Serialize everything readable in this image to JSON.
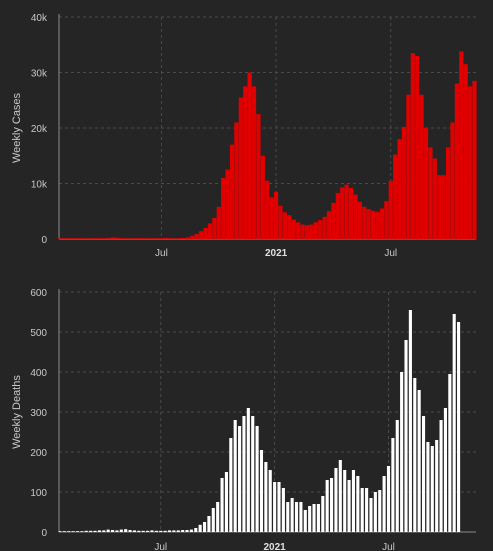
{
  "colors": {
    "background": "#252525",
    "cases_bars": "#e00000",
    "deaths_bars": "#ffffff",
    "grid": "#4a4a4a",
    "text": "#c8c8c8"
  },
  "chart_data": [
    {
      "type": "bar",
      "ylabel": "Weekly Cases",
      "ylim": [
        0,
        40000
      ],
      "yticks": [
        {
          "value": 0,
          "label": "0"
        },
        {
          "value": 10000,
          "label": "10k"
        },
        {
          "value": 20000,
          "label": "20k"
        },
        {
          "value": 30000,
          "label": "30k"
        },
        {
          "value": 40000,
          "label": "40k"
        }
      ],
      "xticks": [
        {
          "week": 23,
          "label": "Jul",
          "bold": false
        },
        {
          "week": 49,
          "label": "2021",
          "bold": true
        },
        {
          "week": 75,
          "label": "Jul",
          "bold": false
        }
      ],
      "grid": true,
      "series": [
        {
          "values": [
            0,
            0,
            0,
            0,
            0,
            10,
            20,
            30,
            40,
            50,
            60,
            200,
            300,
            250,
            150,
            80,
            50,
            40,
            30,
            30,
            50,
            80,
            60,
            100,
            200,
            150,
            100,
            150,
            200,
            300,
            600,
            900,
            1400,
            2000,
            2800,
            3800,
            5800,
            11000,
            12500,
            17000,
            21000,
            25500,
            27500,
            30000,
            27500,
            22500,
            15000,
            10500,
            7500,
            8500,
            6000,
            4800,
            4300,
            3500,
            3000,
            2600,
            2500,
            2600,
            3000,
            3400,
            4000,
            5000,
            6500,
            8300,
            9300,
            9800,
            9200,
            8000,
            6700,
            5800,
            5400,
            5100,
            4900,
            5500,
            6800,
            10500,
            15200,
            18000,
            20200,
            26000,
            33500,
            33000,
            26000,
            20000,
            16500,
            14500,
            11500,
            11500,
            16500,
            21000,
            28000,
            33800,
            31500,
            27500,
            28500
          ]
        }
      ]
    },
    {
      "type": "bar",
      "ylabel": "Weekly Deaths",
      "ylim": [
        0,
        600
      ],
      "yticks": [
        {
          "value": 0,
          "label": "0"
        },
        {
          "value": 100,
          "label": "100"
        },
        {
          "value": 200,
          "label": "200"
        },
        {
          "value": 300,
          "label": "300"
        },
        {
          "value": 400,
          "label": "400"
        },
        {
          "value": 500,
          "label": "500"
        },
        {
          "value": 600,
          "label": "600"
        }
      ],
      "xticks": [
        {
          "week": 23,
          "label": "Jul",
          "bold": false
        },
        {
          "week": 49,
          "label": "2021",
          "bold": true
        },
        {
          "week": 75,
          "label": "Jul",
          "bold": false
        }
      ],
      "grid": true,
      "series": [
        {
          "values": [
            0,
            0,
            0,
            0,
            0,
            2,
            3,
            3,
            3,
            4,
            4,
            6,
            5,
            4,
            6,
            7,
            5,
            4,
            3,
            3,
            3,
            4,
            3,
            3,
            3,
            4,
            4,
            4,
            5,
            5,
            6,
            10,
            18,
            25,
            40,
            60,
            75,
            135,
            150,
            235,
            280,
            265,
            290,
            310,
            290,
            265,
            205,
            175,
            155,
            125,
            125,
            110,
            75,
            85,
            75,
            75,
            55,
            65,
            70,
            70,
            90,
            130,
            135,
            160,
            180,
            155,
            130,
            155,
            140,
            110,
            110,
            85,
            100,
            105,
            140,
            165,
            235,
            280,
            400,
            480,
            555,
            385,
            355,
            290,
            225,
            215,
            230,
            280,
            310,
            395,
            545,
            525
          ]
        }
      ]
    }
  ]
}
